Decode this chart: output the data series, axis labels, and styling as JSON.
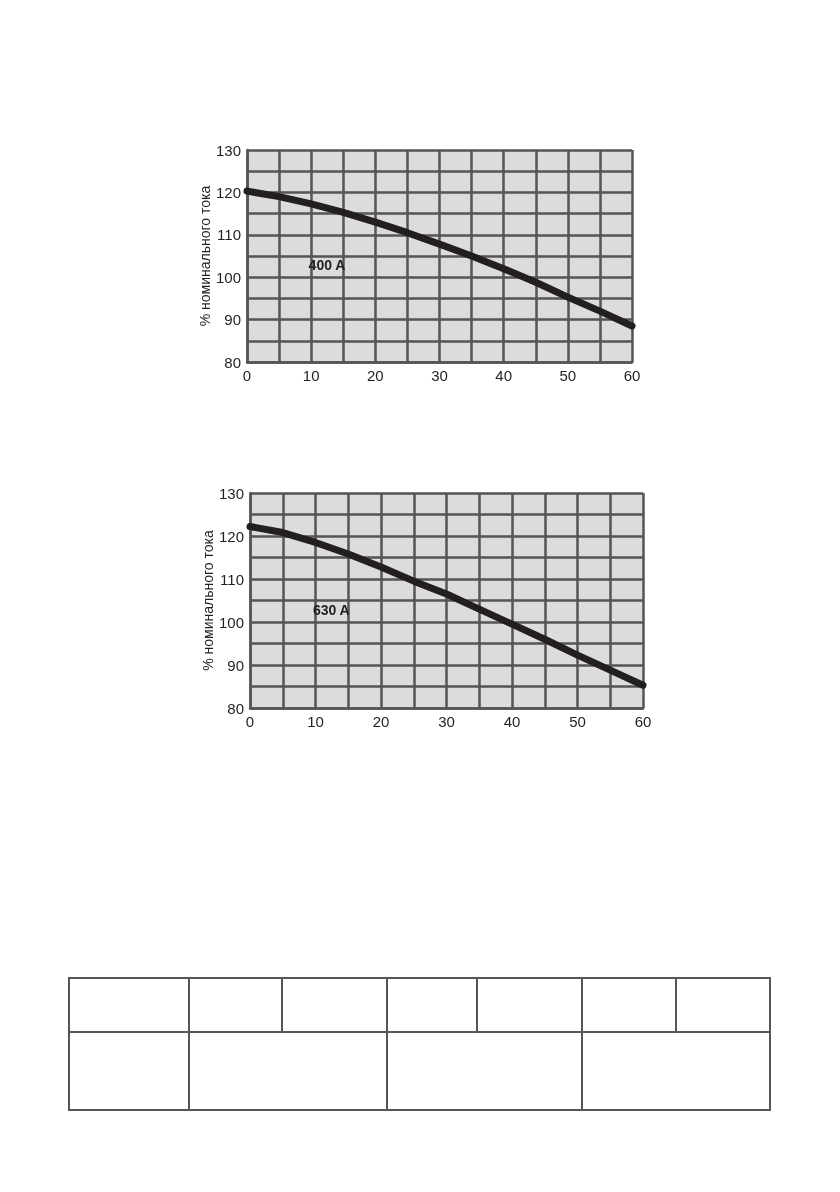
{
  "chart_data": [
    {
      "type": "line",
      "ylabel": "% номинального тока",
      "x": [
        0,
        5,
        10,
        15,
        20,
        25,
        30,
        35,
        40,
        45,
        50,
        55,
        60
      ],
      "series": [
        {
          "color": "#231f20",
          "values": [
            120.3,
            119,
            117.3,
            115.3,
            113,
            110.5,
            107.8,
            105,
            102,
            98.8,
            95.3,
            92,
            88.5
          ]
        }
      ],
      "xlim": [
        0,
        60
      ],
      "ylim": [
        80,
        130
      ],
      "xticks": [
        0,
        {
          "value": 5,
          "label": null
        },
        10,
        {
          "value": 15,
          "label": null
        },
        20,
        {
          "value": 25,
          "label": null
        },
        30,
        {
          "value": 35,
          "label": null
        },
        40,
        {
          "value": 45,
          "label": null
        },
        50,
        {
          "value": 55,
          "label": null
        },
        60
      ],
      "yticks": [
        80,
        {
          "value": 85,
          "label": null
        },
        90,
        {
          "value": 95,
          "label": null
        },
        100,
        {
          "value": 105,
          "label": null
        },
        110,
        {
          "value": 115,
          "label": null
        },
        120,
        {
          "value": 125,
          "label": null
        },
        130
      ],
      "grid": true,
      "marker": "none",
      "line_style": "solid",
      "annotations": [
        "400 A"
      ]
    },
    {
      "type": "line",
      "ylabel": "% номинального тока",
      "x": [
        0,
        5,
        10,
        15,
        20,
        25,
        30,
        35,
        40,
        45,
        50,
        55,
        60
      ],
      "series": [
        {
          "color": "#231f20",
          "values": [
            122.2,
            120.8,
            118.5,
            115.8,
            112.8,
            109.5,
            106.5,
            103,
            99.5,
            96,
            92.3,
            88.8,
            85.3
          ]
        }
      ],
      "xlim": [
        0,
        60
      ],
      "ylim": [
        80,
        130
      ],
      "xticks": [
        0,
        {
          "value": 5,
          "label": null
        },
        10,
        {
          "value": 15,
          "label": null
        },
        20,
        {
          "value": 25,
          "label": null
        },
        30,
        {
          "value": 35,
          "label": null
        },
        40,
        {
          "value": 45,
          "label": null
        },
        50,
        {
          "value": 55,
          "label": null
        },
        60
      ],
      "yticks": [
        80,
        {
          "value": 85,
          "label": null
        },
        90,
        {
          "value": 95,
          "label": null
        },
        100,
        {
          "value": 105,
          "label": null
        },
        110,
        {
          "value": 115,
          "label": null
        },
        120,
        {
          "value": 125,
          "label": null
        },
        130
      ],
      "grid": true,
      "marker": "none",
      "line_style": "solid",
      "annotations": [
        "630 A"
      ]
    }
  ]
}
